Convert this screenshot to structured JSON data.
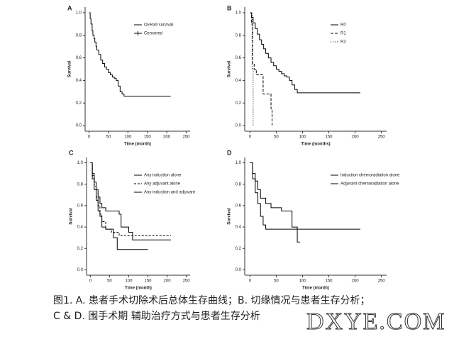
{
  "chart_data": [
    {
      "type": "step",
      "panel": "A",
      "xlabel": "Time (month)",
      "ylabel": "Survival",
      "xlim": [
        -10,
        260
      ],
      "ylim": [
        -0.05,
        1.05
      ],
      "xticks": [
        0,
        50,
        100,
        150,
        200,
        250
      ],
      "yticks": [
        {
          "value": 0,
          "label": "0.0"
        },
        {
          "value": 0.2,
          "label": "0.2"
        },
        {
          "value": 0.4,
          "label": "0.4"
        },
        {
          "value": 0.6,
          "label": "0.6"
        },
        {
          "value": 0.8,
          "label": "0.8"
        },
        {
          "value": 1,
          "label": "1.0"
        }
      ],
      "legend": "upper right",
      "legend_extra": "Censored",
      "series": [
        {
          "name": "Overall survival",
          "color": "#000000",
          "dash": "none",
          "x": [
            0,
            3,
            5,
            8,
            10,
            13,
            15,
            18,
            20,
            25,
            30,
            35,
            40,
            45,
            50,
            55,
            60,
            65,
            70,
            75,
            80,
            85,
            90,
            210
          ],
          "values": [
            1.0,
            0.95,
            0.9,
            0.84,
            0.8,
            0.77,
            0.74,
            0.7,
            0.67,
            0.63,
            0.58,
            0.55,
            0.52,
            0.5,
            0.47,
            0.45,
            0.43,
            0.42,
            0.4,
            0.35,
            0.3,
            0.28,
            0.26,
            0.26
          ]
        }
      ]
    },
    {
      "type": "step",
      "panel": "B",
      "xlabel": "Time (months)",
      "ylabel": "Survival",
      "xlim": [
        -10,
        260
      ],
      "ylim": [
        -0.05,
        1.05
      ],
      "xticks": [
        0,
        50,
        100,
        150,
        200,
        250
      ],
      "yticks": [
        {
          "value": 0,
          "label": "0.0"
        },
        {
          "value": 0.2,
          "label": "0.2"
        },
        {
          "value": 0.4,
          "label": "0.4"
        },
        {
          "value": 0.6,
          "label": "0.6"
        },
        {
          "value": 0.8,
          "label": "0.8"
        },
        {
          "value": 1,
          "label": "1.0"
        }
      ],
      "legend": "upper right",
      "series": [
        {
          "name": "R0",
          "color": "#000000",
          "dash": "none",
          "x": [
            0,
            3,
            6,
            10,
            14,
            18,
            22,
            26,
            30,
            35,
            40,
            45,
            50,
            55,
            60,
            65,
            70,
            75,
            80,
            85,
            90,
            100,
            210
          ],
          "values": [
            1.0,
            0.96,
            0.91,
            0.86,
            0.81,
            0.76,
            0.72,
            0.68,
            0.64,
            0.6,
            0.56,
            0.53,
            0.5,
            0.48,
            0.46,
            0.44,
            0.43,
            0.4,
            0.36,
            0.32,
            0.29,
            0.29,
            0.29
          ]
        },
        {
          "name": "R1",
          "color": "#000000",
          "dash": "4,2",
          "x": [
            0,
            3,
            5,
            8,
            12,
            25,
            35,
            40,
            42
          ],
          "values": [
            1.0,
            0.9,
            0.55,
            0.5,
            0.45,
            0.28,
            0.28,
            0.15,
            0.0
          ]
        },
        {
          "name": "R2",
          "color": "#000000",
          "dash": "1,2",
          "x": [
            0,
            4,
            6
          ],
          "values": [
            1.0,
            0.5,
            0.0
          ]
        }
      ]
    },
    {
      "type": "step",
      "panel": "C",
      "xlabel": "Time (month)",
      "ylabel": "Survival",
      "xlim": [
        -10,
        260
      ],
      "ylim": [
        -0.05,
        1.05
      ],
      "xticks": [
        0,
        50,
        100,
        150,
        200,
        250
      ],
      "yticks": [
        {
          "value": 0,
          "label": "0.0"
        },
        {
          "value": 0.2,
          "label": "0.2"
        },
        {
          "value": 0.4,
          "label": "0.4"
        },
        {
          "value": 0.6,
          "label": "0.6"
        },
        {
          "value": 0.8,
          "label": "0.8"
        },
        {
          "value": 1,
          "label": "1.0"
        }
      ],
      "legend": "upper right",
      "series": [
        {
          "name": "Any induction alone",
          "color": "#000000",
          "dash": "none",
          "x": [
            0,
            5,
            10,
            15,
            20,
            25,
            30,
            40,
            50,
            60,
            75,
            80,
            100,
            110,
            210
          ],
          "values": [
            1.0,
            0.9,
            0.82,
            0.75,
            0.68,
            0.62,
            0.58,
            0.55,
            0.55,
            0.55,
            0.52,
            0.4,
            0.35,
            0.28,
            0.28
          ]
        },
        {
          "name": "Any adjuvant alone",
          "color": "#000000",
          "dash": "3,2",
          "x": [
            0,
            5,
            10,
            15,
            20,
            25,
            30,
            40,
            55,
            75,
            90,
            210
          ],
          "values": [
            1.0,
            0.88,
            0.78,
            0.68,
            0.6,
            0.52,
            0.45,
            0.38,
            0.35,
            0.32,
            0.32,
            0.32
          ]
        },
        {
          "name": "Any induction and adjuvant",
          "color": "#000000",
          "dash": "none",
          "x": [
            0,
            5,
            10,
            15,
            20,
            25,
            30,
            40,
            50,
            60,
            70,
            110,
            150
          ],
          "values": [
            1.0,
            0.85,
            0.75,
            0.65,
            0.55,
            0.5,
            0.4,
            0.38,
            0.38,
            0.3,
            0.19,
            0.19,
            0.19
          ]
        }
      ]
    },
    {
      "type": "step",
      "panel": "D",
      "xlabel": "Time (month)",
      "ylabel": "Survival",
      "xlim": [
        -10,
        260
      ],
      "ylim": [
        -0.05,
        1.05
      ],
      "xticks": [
        0,
        50,
        100,
        150,
        200,
        250
      ],
      "yticks": [
        {
          "value": 0,
          "label": "0.0"
        },
        {
          "value": 0.2,
          "label": "0.2"
        },
        {
          "value": 0.4,
          "label": "0.4"
        },
        {
          "value": 0.6,
          "label": "0.6"
        },
        {
          "value": 0.8,
          "label": "0.8"
        },
        {
          "value": 1,
          "label": "1.0"
        }
      ],
      "legend": "upper right",
      "series": [
        {
          "name": "Induction chemoradiation alone",
          "color": "#000000",
          "dash": "none",
          "x": [
            0,
            5,
            10,
            15,
            20,
            30,
            40,
            50,
            60,
            70,
            80,
            90,
            95
          ],
          "values": [
            1.0,
            0.9,
            0.83,
            0.75,
            0.67,
            0.62,
            0.58,
            0.58,
            0.55,
            0.55,
            0.4,
            0.26,
            0.26
          ]
        },
        {
          "name": "Adjuvant chemoradiation alone",
          "color": "#000000",
          "dash": "none",
          "x": [
            0,
            5,
            10,
            15,
            20,
            25,
            30,
            210
          ],
          "values": [
            1.0,
            0.85,
            0.72,
            0.62,
            0.5,
            0.42,
            0.38,
            0.38
          ]
        }
      ]
    }
  ],
  "caption": [
    "图1. A. 患者手术切除术后总体生存曲线；B. 切缘情况与患者生存分析；",
    "C & D. 围手术期 辅助治疗方式与患者生存分析"
  ],
  "watermark": "DXYE.COM"
}
